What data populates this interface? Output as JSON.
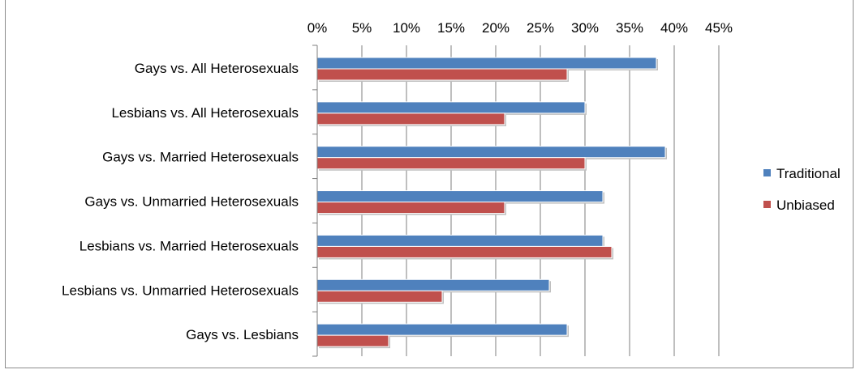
{
  "chart_data": {
    "type": "bar",
    "orientation": "horizontal",
    "x_axis_position": "top",
    "categories": [
      "Gays vs. All Heterosexuals",
      "Lesbians vs. All Heterosexuals",
      "Gays vs. Married Heterosexuals",
      "Gays vs. Unmarried Heterosexuals",
      "Lesbians vs. Married Heterosexuals",
      "Lesbians vs. Unmarried Heterosexuals",
      "Gays vs. Lesbians"
    ],
    "series": [
      {
        "name": "Traditional",
        "color": "#4f81bd",
        "values": [
          38,
          30,
          39,
          32,
          32,
          26,
          28
        ]
      },
      {
        "name": "Unbiased",
        "color": "#c0504d",
        "values": [
          28,
          21,
          30,
          21,
          33,
          14,
          8
        ]
      }
    ],
    "xlim": [
      0,
      45
    ],
    "x_ticks": [
      0,
      5,
      10,
      15,
      20,
      25,
      30,
      35,
      40,
      45
    ],
    "x_tick_labels": [
      "0%",
      "5%",
      "10%",
      "15%",
      "20%",
      "25%",
      "30%",
      "35%",
      "40%",
      "45%"
    ],
    "title": "",
    "xlabel": "",
    "ylabel": "",
    "grid": "vertical",
    "legend_position": "right"
  }
}
